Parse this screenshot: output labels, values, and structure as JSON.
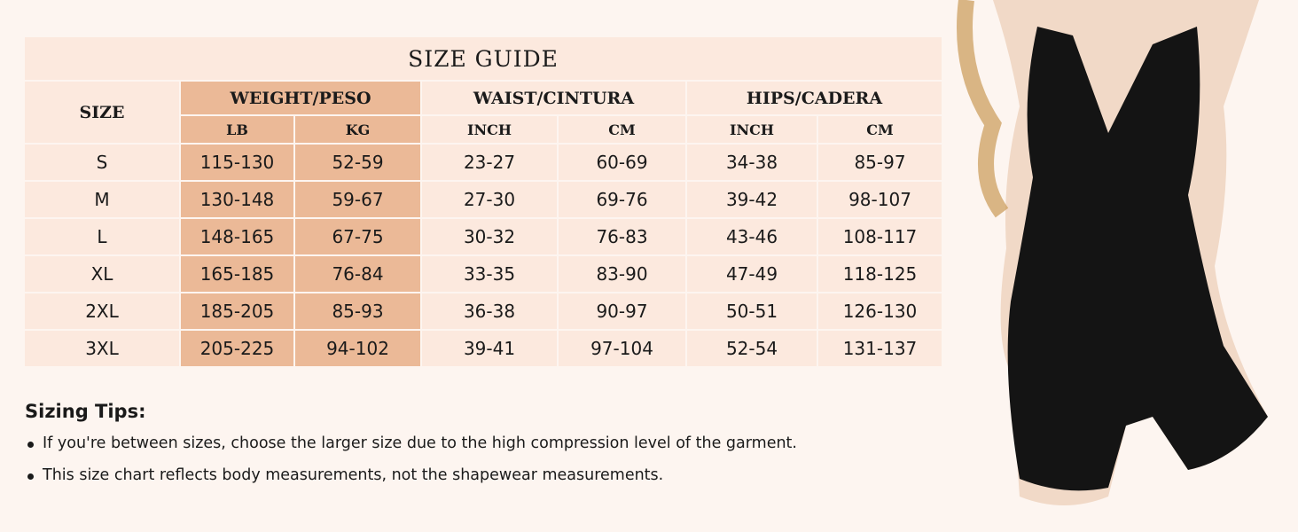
{
  "title": "SIZE GUIDE",
  "headers": {
    "size": "SIZE",
    "weight": "WEIGHT/PESO",
    "waist": "WAIST/CINTURA",
    "hips": "HIPS/CADERA",
    "lb": "LB",
    "kg": "KG",
    "waist_inch": "INCH",
    "waist_cm": "CM",
    "hips_inch": "INCH",
    "hips_cm": "CM"
  },
  "rows": [
    [
      "S",
      "115-130",
      "52-59",
      "23-27",
      "60-69",
      "34-38",
      "85-97"
    ],
    [
      "M",
      "130-148",
      "59-67",
      "27-30",
      "69-76",
      "39-42",
      "98-107"
    ],
    [
      "L",
      "148-165",
      "67-75",
      "30-32",
      "76-83",
      "43-46",
      "108-117"
    ],
    [
      "XL",
      "165-185",
      "76-84",
      "33-35",
      "83-90",
      "47-49",
      "118-125"
    ],
    [
      "2XL",
      "185-205",
      "85-93",
      "36-38",
      "90-97",
      "50-51",
      "126-130"
    ],
    [
      "3XL",
      "205-225",
      "94-102",
      "39-41",
      "97-104",
      "52-54",
      "131-137"
    ]
  ],
  "tips": {
    "heading": "Sizing Tips:",
    "items": [
      "If you're between sizes, choose the larger size due to the high compression level of the garment.",
      "This size chart reflects body measurements, not the shapewear measurements."
    ]
  },
  "colors": {
    "background": "#fdf5f0",
    "cell": "#fce9de",
    "weight_cell": "#ebb997"
  }
}
